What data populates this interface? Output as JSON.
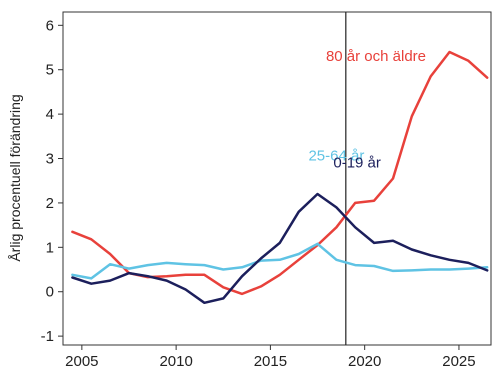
{
  "chart_data": {
    "type": "line",
    "title": "",
    "xlabel": "",
    "ylabel": "Årlig procentuell förändring",
    "xlim": [
      2004,
      2026.7
    ],
    "ylim": [
      -1.2,
      6.3
    ],
    "xticks": [
      2005,
      2010,
      2015,
      2020,
      2025
    ],
    "yticks": [
      -1,
      0,
      1,
      2,
      3,
      4,
      5,
      6
    ],
    "grid": false,
    "legend": "inline labels",
    "vertical_marker_x": 2019,
    "vertical_marker_color": "#222222",
    "series": [
      {
        "name": "80 år och äldre",
        "color": "#e8413b",
        "label_at": [
          2020.6,
          5.2
        ],
        "x": [
          2004.5,
          2005.5,
          2006.5,
          2007.5,
          2008.5,
          2009.5,
          2010.5,
          2011.5,
          2012.5,
          2013.5,
          2014.5,
          2015.5,
          2016.5,
          2017.5,
          2018.5,
          2019.5,
          2020.5,
          2021.5,
          2022.5,
          2023.5,
          2024.5,
          2025.5,
          2026.5
        ],
        "y": [
          1.35,
          1.18,
          0.85,
          0.42,
          0.33,
          0.35,
          0.38,
          0.38,
          0.1,
          -0.05,
          0.12,
          0.38,
          0.72,
          1.05,
          1.45,
          2.0,
          2.05,
          2.55,
          3.95,
          4.85,
          5.4,
          5.2,
          4.82
        ]
      },
      {
        "name": "25-64 år",
        "color": "#5fc3e4",
        "label_at": [
          2018.5,
          2.95
        ],
        "x": [
          2004.5,
          2005.5,
          2006.5,
          2007.5,
          2008.5,
          2009.5,
          2010.5,
          2011.5,
          2012.5,
          2013.5,
          2014.5,
          2015.5,
          2016.5,
          2017.5,
          2018.5,
          2019.5,
          2020.5,
          2021.5,
          2022.5,
          2023.5,
          2024.5,
          2025.5,
          2026.5
        ],
        "y": [
          0.38,
          0.3,
          0.62,
          0.52,
          0.6,
          0.65,
          0.62,
          0.6,
          0.5,
          0.55,
          0.7,
          0.72,
          0.85,
          1.08,
          0.72,
          0.6,
          0.58,
          0.47,
          0.48,
          0.5,
          0.5,
          0.52,
          0.55
        ]
      },
      {
        "name": "0-19 år",
        "color": "#1c1f5c",
        "label_at": [
          2019.6,
          2.8
        ],
        "x": [
          2004.5,
          2005.5,
          2006.5,
          2007.5,
          2008.5,
          2009.5,
          2010.5,
          2011.5,
          2012.5,
          2013.5,
          2014.5,
          2015.5,
          2016.5,
          2017.5,
          2018.5,
          2019.5,
          2020.5,
          2021.5,
          2022.5,
          2023.5,
          2024.5,
          2025.5,
          2026.5
        ],
        "y": [
          0.32,
          0.18,
          0.25,
          0.42,
          0.35,
          0.25,
          0.05,
          -0.25,
          -0.15,
          0.35,
          0.75,
          1.1,
          1.8,
          2.2,
          1.9,
          1.45,
          1.1,
          1.15,
          0.95,
          0.82,
          0.72,
          0.65,
          0.48
        ]
      }
    ]
  }
}
